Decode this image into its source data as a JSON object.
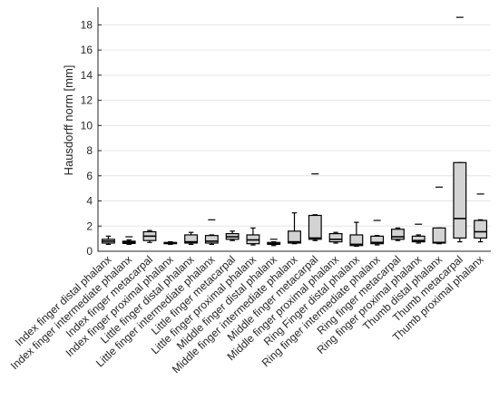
{
  "chart_data": {
    "type": "boxplot",
    "title": "",
    "xlabel": "",
    "ylabel": "Hausdorff norm [mm]",
    "ylim": [
      0,
      19.4
    ],
    "yticks": [
      0,
      2,
      4,
      6,
      8,
      10,
      12,
      14,
      16,
      18
    ],
    "grid": true,
    "categories": [
      "Index finger distal phalanx",
      "Index finger intermediate phalanx",
      "Index finger metacarpal",
      "Index finger proximal phalanx",
      "Little finger distal phalanx",
      "Little finger intermediate phalanx",
      "Little finger metacarpal",
      "Little finger proximal phalanx",
      "Middle finger distal phalanx",
      "Middle finger intermediate phalanx",
      "Middle finger metacarpal",
      "Middle finger proximal phalanx",
      "Ring Finger distal phalanx",
      "Ring finger intermediate phalanx",
      "Ring finger metacarpal",
      "Ring finger proximal phalanx",
      "Thumb distal phalanx",
      "Thumb metacarpal",
      "Thumb proximal phalanx"
    ],
    "boxes": [
      {
        "min": 0.55,
        "q1": 0.65,
        "median": 0.8,
        "q3": 0.95,
        "max": 1.2,
        "outliers": []
      },
      {
        "min": 0.55,
        "q1": 0.62,
        "median": 0.7,
        "q3": 0.8,
        "max": 0.9,
        "outliers": [
          1.15
        ]
      },
      {
        "min": 0.7,
        "q1": 0.85,
        "median": 1.2,
        "q3": 1.55,
        "max": 1.65,
        "outliers": []
      },
      {
        "min": 0.55,
        "q1": 0.6,
        "median": 0.65,
        "q3": 0.7,
        "max": 0.75,
        "outliers": []
      },
      {
        "min": 0.55,
        "q1": 0.65,
        "median": 0.75,
        "q3": 1.3,
        "max": 1.5,
        "outliers": []
      },
      {
        "min": 0.55,
        "q1": 0.65,
        "median": 0.8,
        "q3": 1.25,
        "max": 1.3,
        "outliers": [
          2.5
        ]
      },
      {
        "min": 0.85,
        "q1": 0.95,
        "median": 1.15,
        "q3": 1.4,
        "max": 1.6,
        "outliers": []
      },
      {
        "min": 0.5,
        "q1": 0.6,
        "median": 0.9,
        "q3": 1.3,
        "max": 1.85,
        "outliers": []
      },
      {
        "min": 0.45,
        "q1": 0.55,
        "median": 0.6,
        "q3": 0.7,
        "max": 0.75,
        "outliers": [
          0.95
        ]
      },
      {
        "min": 0.6,
        "q1": 0.65,
        "median": 0.75,
        "q3": 1.6,
        "max": 3.05,
        "outliers": []
      },
      {
        "min": 0.85,
        "q1": 0.95,
        "median": 1.05,
        "q3": 2.85,
        "max": 2.9,
        "outliers": [
          6.15
        ]
      },
      {
        "min": 0.65,
        "q1": 0.75,
        "median": 0.95,
        "q3": 1.4,
        "max": 1.5,
        "outliers": []
      },
      {
        "min": 0.4,
        "q1": 0.45,
        "median": 0.55,
        "q3": 1.3,
        "max": 2.3,
        "outliers": []
      },
      {
        "min": 0.5,
        "q1": 0.6,
        "median": 0.7,
        "q3": 1.2,
        "max": 1.25,
        "outliers": [
          2.45
        ]
      },
      {
        "min": 0.85,
        "q1": 0.95,
        "median": 1.15,
        "q3": 1.75,
        "max": 1.85,
        "outliers": []
      },
      {
        "min": 0.65,
        "q1": 0.75,
        "median": 0.85,
        "q3": 1.2,
        "max": 1.3,
        "outliers": [
          2.15
        ]
      },
      {
        "min": 0.6,
        "q1": 0.65,
        "median": 0.7,
        "q3": 1.85,
        "max": 1.85,
        "outliers": [
          5.1
        ]
      },
      {
        "min": 0.75,
        "q1": 1.05,
        "median": 2.6,
        "q3": 7.05,
        "max": 7.05,
        "outliers": [
          18.6
        ]
      },
      {
        "min": 0.75,
        "q1": 1.05,
        "median": 1.55,
        "q3": 2.45,
        "max": 2.5,
        "outliers": [
          4.55
        ]
      }
    ]
  }
}
